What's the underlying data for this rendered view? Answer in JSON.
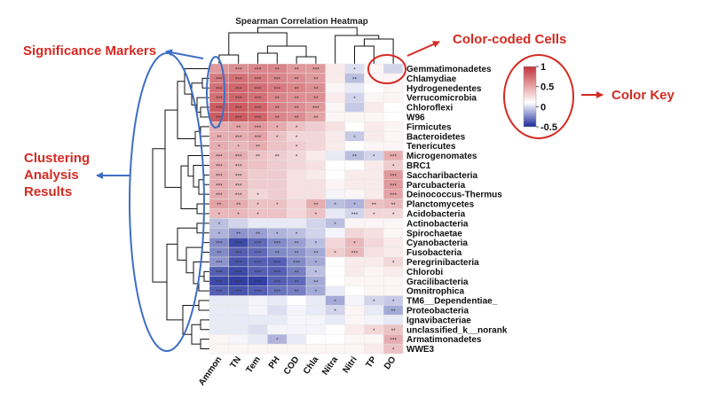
{
  "annotations": {
    "significance": "Significance Markers",
    "color_coded": "Color-coded Cells",
    "color_key": "Color Key",
    "clustering_line1": "Clustering",
    "clustering_line2": "Analysis",
    "clustering_line3": "Results"
  },
  "colors": {
    "positive": "#c0333b",
    "neutral": "#ffffff",
    "negative": "#1c2a99",
    "annotation": "#d42a22",
    "arrow_blue": "#3f6fc4"
  },
  "chart_data": {
    "type": "heatmap",
    "title": "Spearman Correlation Heatmap",
    "x": [
      "Ammon",
      "TN",
      "Tem",
      "PH",
      "COD",
      "Chla",
      "Nitra",
      "Nitri",
      "TP",
      "DO"
    ],
    "y": [
      "Gemmatimonadetes",
      "Chlamydiae",
      "Hydrogenedentes",
      "Verrucomicrobia",
      "Chloroflexi",
      "W96",
      "Firmicutes",
      "Bacteroidetes",
      "Tenericutes",
      "Microgenomates",
      "BRC1",
      "Saccharibacteria",
      "Parcubacteria",
      "Deinococcus-Thermus",
      "Planctomycetes",
      "Acidobacteria",
      "Actinobacteria",
      "Spirochaetae",
      "Cyanobacteria",
      "Fusobacteria",
      "Peregrinibacteria",
      "Chlorobi",
      "Gracilibacteria",
      "Omnitrophica",
      "TM6__Dependentiae_",
      "Proteobacteria",
      "Ignavibacteriae",
      "unclassified_k__norank",
      "Armatimonadetes",
      "WWE3"
    ],
    "values": [
      [
        0.5,
        0.55,
        0.6,
        0.6,
        0.5,
        0.5,
        0.1,
        -0.15,
        0.05,
        -0.2
      ],
      [
        0.65,
        0.7,
        0.65,
        0.6,
        0.55,
        0.5,
        0.1,
        -0.3,
        0.05,
        0.05
      ],
      [
        0.7,
        0.75,
        0.7,
        0.65,
        0.6,
        0.55,
        0.05,
        -0.1,
        0.0,
        0.05
      ],
      [
        0.7,
        0.75,
        0.7,
        0.6,
        0.55,
        0.55,
        0.1,
        -0.2,
        0.05,
        0.05
      ],
      [
        0.8,
        0.8,
        0.75,
        0.6,
        0.55,
        0.5,
        0.05,
        -0.25,
        0.1,
        0.0
      ],
      [
        0.8,
        0.8,
        0.75,
        0.6,
        0.55,
        0.45,
        0.05,
        0.05,
        0.05,
        0.0
      ],
      [
        0.4,
        0.45,
        0.5,
        0.4,
        0.3,
        0.25,
        0.15,
        0.0,
        0.1,
        0.05
      ],
      [
        0.4,
        0.4,
        0.45,
        0.3,
        0.2,
        0.2,
        0.1,
        -0.25,
        0.1,
        0.05
      ],
      [
        0.4,
        0.35,
        0.4,
        0.3,
        0.25,
        0.2,
        0.1,
        0.0,
        0.05,
        0.05
      ],
      [
        0.4,
        0.4,
        0.3,
        0.25,
        0.2,
        0.1,
        -0.1,
        -0.3,
        -0.2,
        0.4
      ],
      [
        0.4,
        0.35,
        0.3,
        0.25,
        0.2,
        0.15,
        0.0,
        0.0,
        0.1,
        0.25
      ],
      [
        0.4,
        0.35,
        0.25,
        0.25,
        0.15,
        0.1,
        0.0,
        0.1,
        0.1,
        0.5
      ],
      [
        0.4,
        0.35,
        0.25,
        0.25,
        0.15,
        0.15,
        0.05,
        0.1,
        0.1,
        0.5
      ],
      [
        0.4,
        0.35,
        0.2,
        0.25,
        0.15,
        0.15,
        -0.05,
        0.05,
        0.1,
        0.45
      ],
      [
        0.45,
        0.4,
        0.3,
        0.3,
        0.2,
        0.4,
        -0.3,
        -0.35,
        0.3,
        0.35
      ],
      [
        0.35,
        0.35,
        0.3,
        0.3,
        0.2,
        0.3,
        -0.1,
        -0.2,
        0.2,
        0.2
      ],
      [
        -0.3,
        -0.2,
        -0.1,
        -0.1,
        -0.1,
        -0.2,
        -0.3,
        0.05,
        0.05,
        0.05
      ],
      [
        -0.35,
        -0.5,
        -0.45,
        -0.35,
        -0.3,
        -0.2,
        -0.05,
        0.2,
        0.15,
        0.05
      ],
      [
        -0.55,
        -0.85,
        -0.7,
        -0.55,
        -0.45,
        -0.3,
        0.2,
        0.35,
        0.2,
        0.1
      ],
      [
        -0.55,
        -0.75,
        -0.7,
        -0.55,
        -0.5,
        -0.4,
        0.25,
        0.35,
        0.15,
        0.1
      ],
      [
        -0.5,
        -0.8,
        -0.75,
        -0.75,
        -0.55,
        -0.4,
        0.0,
        0.1,
        0.1,
        0.2
      ],
      [
        -0.75,
        -0.85,
        -0.75,
        -0.75,
        -0.6,
        -0.3,
        0.0,
        0.1,
        0.05,
        0.1
      ],
      [
        -0.85,
        -0.9,
        -0.9,
        -0.75,
        -0.7,
        -0.4,
        0.0,
        0.05,
        0.05,
        0.05
      ],
      [
        -0.75,
        -0.8,
        -0.75,
        -0.65,
        -0.6,
        -0.4,
        -0.1,
        0.0,
        0.05,
        0.05
      ],
      [
        -0.1,
        -0.1,
        -0.05,
        -0.1,
        0.0,
        -0.1,
        -0.4,
        -0.05,
        -0.2,
        -0.25
      ],
      [
        -0.1,
        -0.1,
        -0.05,
        -0.15,
        -0.05,
        -0.1,
        -0.2,
        0.05,
        -0.1,
        -0.4
      ],
      [
        -0.1,
        -0.1,
        -0.1,
        -0.1,
        -0.05,
        -0.05,
        -0.1,
        0.05,
        -0.05,
        -0.1
      ],
      [
        -0.1,
        -0.1,
        -0.15,
        -0.05,
        -0.05,
        -0.05,
        0.0,
        0.1,
        0.2,
        0.3
      ],
      [
        0.05,
        -0.05,
        -0.1,
        -0.35,
        -0.1,
        0.0,
        0.0,
        0.05,
        0.05,
        0.4
      ],
      [
        0.05,
        0.05,
        0.05,
        0.05,
        0.05,
        0.05,
        0.05,
        0.05,
        0.1,
        0.3
      ]
    ],
    "significance": [
      [
        "",
        "***",
        "***",
        "**",
        "**",
        "***",
        "",
        "*",
        "",
        ""
      ],
      [
        "***",
        "***",
        "***",
        "***",
        "**",
        "**",
        "",
        "**",
        "",
        ""
      ],
      [
        "***",
        "***",
        "***",
        "***",
        "**",
        "**",
        "",
        "",
        "",
        ""
      ],
      [
        "***",
        "***",
        "***",
        "**",
        "**",
        "**",
        "",
        "*",
        "",
        ""
      ],
      [
        "***",
        "***",
        "***",
        "**",
        "**",
        "***",
        "",
        "",
        "",
        ""
      ],
      [
        "***",
        "***",
        "***",
        "**",
        "**",
        "**",
        "",
        "",
        "",
        ""
      ],
      [
        "*",
        "**",
        "***",
        "*",
        "*",
        "",
        "",
        "",
        "",
        ""
      ],
      [
        "**",
        "***",
        "***",
        "*",
        "*",
        "",
        "",
        "*",
        "",
        ""
      ],
      [
        "*",
        "*",
        "**",
        "",
        "*",
        "",
        "",
        "",
        "",
        ""
      ],
      [
        "***",
        "***",
        "**",
        "**",
        "*",
        "",
        "",
        "**",
        "*",
        "***"
      ],
      [
        "***",
        "***",
        "",
        "",
        "",
        "",
        "",
        "",
        "",
        "*"
      ],
      [
        "***",
        "***",
        "",
        "",
        "",
        "",
        "",
        "",
        "",
        "***"
      ],
      [
        "***",
        "***",
        "",
        "",
        "",
        "",
        "",
        "",
        "",
        "***"
      ],
      [
        "***",
        "***",
        "*",
        "",
        "",
        "",
        "",
        "",
        "",
        "***"
      ],
      [
        "**",
        "**",
        "*",
        "*",
        "",
        "**",
        "*",
        "*",
        "**",
        "**"
      ],
      [
        "*",
        "*",
        "*",
        "",
        "",
        "*",
        "",
        "***",
        "*",
        "*"
      ],
      [
        "*",
        "",
        "",
        "",
        "",
        "",
        "*",
        "",
        "",
        ""
      ],
      [
        "*",
        "**",
        "**",
        "*",
        "*",
        "",
        "",
        "",
        "",
        ""
      ],
      [
        "***",
        "***",
        "***",
        "***",
        "**",
        "*",
        "",
        "*",
        "",
        ""
      ],
      [
        "**",
        "***",
        "***",
        "**",
        "**",
        "**",
        "*",
        "***",
        "",
        ""
      ],
      [
        "***",
        "***",
        "***",
        "***",
        "***",
        "*",
        "",
        "",
        "",
        "*"
      ],
      [
        "***",
        "***",
        "***",
        "***",
        "**",
        "*",
        "",
        "",
        "",
        ""
      ],
      [
        "***",
        "***",
        "***",
        "***",
        "**",
        "**",
        "",
        "",
        "",
        ""
      ],
      [
        "***",
        "***",
        "***",
        "***",
        "**",
        "*",
        "",
        "",
        "",
        ""
      ],
      [
        "",
        "",
        "",
        "",
        "",
        "",
        "*",
        "",
        "*",
        "*"
      ],
      [
        "",
        "",
        "",
        "",
        "",
        "",
        "*",
        "",
        "",
        "**"
      ],
      [
        "",
        "",
        "",
        "",
        "",
        "",
        "",
        "",
        "",
        ""
      ],
      [
        "",
        "",
        "",
        "",
        "",
        "",
        "",
        "",
        "*",
        "**"
      ],
      [
        "",
        "",
        "",
        "*",
        "",
        "",
        "",
        "",
        "",
        "***"
      ],
      [
        "",
        "",
        "",
        "",
        "",
        "",
        "",
        "",
        "",
        "*"
      ]
    ],
    "color_key": {
      "min": -0.5,
      "max": 1,
      "ticks": [
        {
          "value": 1,
          "label": "1"
        },
        {
          "value": 0.5,
          "label": "0.5"
        },
        {
          "value": 0,
          "label": "0"
        },
        {
          "value": -0.5,
          "label": "-0.5"
        }
      ]
    }
  }
}
